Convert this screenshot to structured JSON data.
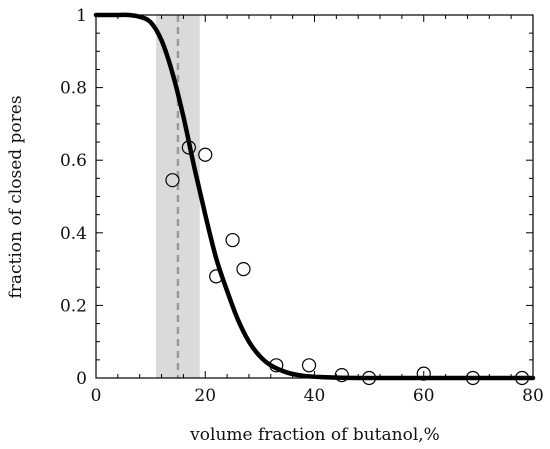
{
  "chart_data": {
    "type": "scatter",
    "xlabel": "volume fraction of butanol,%",
    "ylabel": "fraction of closed pores",
    "xlim": [
      0,
      80
    ],
    "ylim": [
      0,
      1
    ],
    "xticks": [
      0,
      20,
      40,
      60,
      80
    ],
    "xtick_labels": [
      "0",
      "20",
      "40",
      "60",
      "80"
    ],
    "yticks": [
      0,
      0.2,
      0.4,
      0.6,
      0.8,
      1
    ],
    "ytick_labels": [
      "0",
      "0.2",
      "0.4",
      "0.6",
      "0.8",
      "1"
    ],
    "grid": false,
    "shaded_band": {
      "x_start": 11,
      "x_end": 19,
      "color": "#dadada"
    },
    "dashed_line": {
      "x": 15,
      "color": "#9a9a9a"
    },
    "fit_curve": {
      "color": "#000000",
      "points": [
        [
          0,
          1.0
        ],
        [
          4,
          1.0
        ],
        [
          6,
          1.0
        ],
        [
          8,
          0.995
        ],
        [
          10,
          0.98
        ],
        [
          12,
          0.93
        ],
        [
          14,
          0.84
        ],
        [
          16,
          0.72
        ],
        [
          18,
          0.58
        ],
        [
          20,
          0.45
        ],
        [
          22,
          0.33
        ],
        [
          24,
          0.24
        ],
        [
          26,
          0.16
        ],
        [
          28,
          0.1
        ],
        [
          30,
          0.06
        ],
        [
          32,
          0.035
        ],
        [
          35,
          0.015
        ],
        [
          38,
          0.006
        ],
        [
          42,
          0.002
        ],
        [
          48,
          0.0
        ],
        [
          60,
          0.0
        ],
        [
          80,
          0.0
        ]
      ]
    },
    "measured_points": {
      "marker": "open-circle",
      "points": [
        [
          14,
          0.545
        ],
        [
          17,
          0.635
        ],
        [
          20,
          0.615
        ],
        [
          22,
          0.28
        ],
        [
          25,
          0.38
        ],
        [
          27,
          0.3
        ],
        [
          33,
          0.035
        ],
        [
          39,
          0.035
        ],
        [
          45,
          0.008
        ],
        [
          50,
          0.0
        ],
        [
          60,
          0.012
        ],
        [
          69,
          0.0
        ],
        [
          78,
          0.0
        ]
      ]
    }
  }
}
